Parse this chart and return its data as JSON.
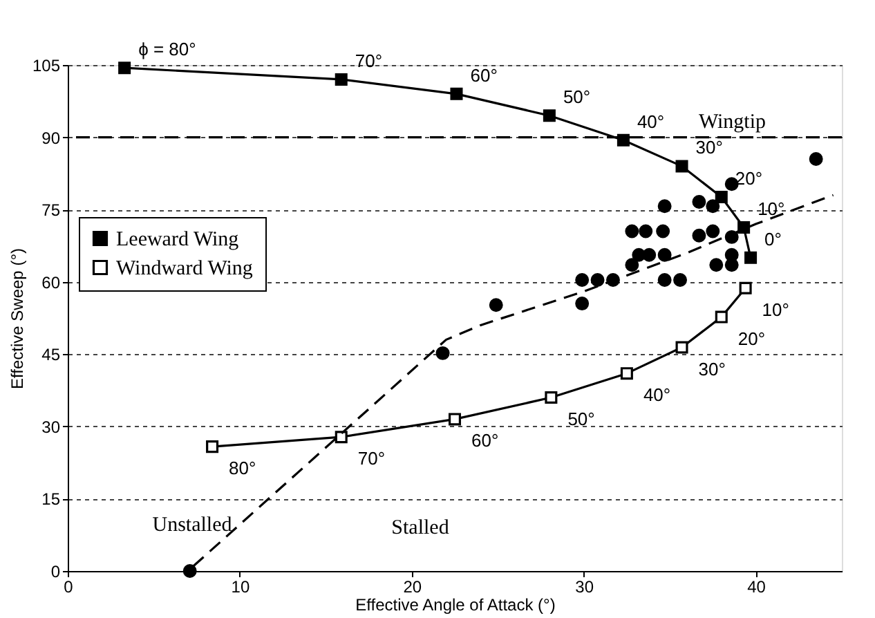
{
  "chart_data": {
    "type": "line",
    "xlabel": "Effective Angle of Attack (°)",
    "ylabel": "Effective Sweep (°)",
    "xlim": [
      0,
      45
    ],
    "xticks": [
      0,
      10,
      20,
      30,
      40
    ],
    "ylim": [
      0,
      105
    ],
    "yticks": [
      0,
      15,
      30,
      45,
      60,
      75,
      90,
      105
    ],
    "grid": "y",
    "legend": "left",
    "series": [
      {
        "name": "Leeward Wing",
        "color": "#000000",
        "marker": "square",
        "x": [
          3.3,
          15.9,
          22.6,
          28.0,
          32.3,
          35.7,
          38.0,
          39.3,
          39.7
        ],
        "values": [
          104.4,
          102,
          99,
          94.5,
          89.4,
          84,
          77.6,
          71.3,
          65
        ]
      },
      {
        "name": "Windward Wing",
        "color": "#000000",
        "marker": "square",
        "x": [
          39.4,
          38.0,
          35.7,
          32.5,
          28.1,
          22.5,
          15.9,
          8.4
        ],
        "values": [
          58.7,
          52.7,
          46.4,
          41,
          36,
          31.5,
          27.8,
          25.8
        ]
      },
      {
        "color": "#000000",
        "type": "scatter",
        "marker": "circle",
        "x": [
          43.5,
          38.6,
          34.7,
          36.7,
          37.5,
          32.8,
          33.6,
          34.6,
          36.7,
          37.5,
          38.6,
          33.2,
          33.8,
          34.7,
          32.8,
          38.6,
          37.7,
          38.6,
          29.9,
          30.8,
          31.7,
          34.7,
          35.6,
          29.9,
          24.9,
          21.8,
          7.1
        ],
        "values": [
          85.5,
          80.3,
          75.7,
          76.6,
          75.7,
          70.5,
          70.5,
          70.5,
          69.6,
          70.5,
          69.3,
          65.6,
          65.6,
          65.6,
          63.5,
          65.6,
          63.5,
          63.5,
          60.4,
          60.4,
          60.4,
          60.4,
          60.4,
          55.5,
          55.2,
          45.2,
          0
        ]
      },
      {
        "color": "#000000",
        "marker": "none",
        "line_style": "dashed",
        "x": [
          7.3,
          22,
          24,
          30,
          36,
          40,
          44.5
        ],
        "values": [
          1,
          48,
          51,
          58,
          66,
          72,
          78
        ]
      }
    ],
    "ref_lines": [
      {
        "axis": "y",
        "value": 90,
        "label": "Wingtip",
        "line_style": "dashed",
        "color": "#000000"
      }
    ],
    "annotations": [
      {
        "text": "ϕ = 80°",
        "x": 3.3,
        "y": 104.4
      },
      {
        "text": "70°",
        "x": 15.9,
        "y": 102
      },
      {
        "text": "60°",
        "x": 22.6,
        "y": 99
      },
      {
        "text": "50°",
        "x": 28.0,
        "y": 94.5
      },
      {
        "text": "40°",
        "x": 32.3,
        "y": 89.4
      },
      {
        "text": "30°",
        "x": 35.7,
        "y": 84
      },
      {
        "text": "20°",
        "x": 38.0,
        "y": 77.6
      },
      {
        "text": "10°",
        "x": 39.3,
        "y": 71.3
      },
      {
        "text": "0°",
        "x": 39.7,
        "y": 65
      },
      {
        "text": "10°",
        "x": 39.4,
        "y": 58.7
      },
      {
        "text": "20°",
        "x": 38.0,
        "y": 52.7
      },
      {
        "text": "30°",
        "x": 35.7,
        "y": 46.4
      },
      {
        "text": "40°",
        "x": 32.5,
        "y": 41
      },
      {
        "text": "50°",
        "x": 28.1,
        "y": 36
      },
      {
        "text": "60°",
        "x": 22.5,
        "y": 31.5
      },
      {
        "text": "70°",
        "x": 15.9,
        "y": 27.8
      },
      {
        "text": "80°",
        "x": 8.4,
        "y": 25.8
      },
      "Unstalled",
      "Stalled"
    ]
  }
}
